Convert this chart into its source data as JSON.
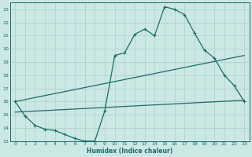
{
  "xlabel": "Humidex (Indice chaleur)",
  "xlim": [
    -0.5,
    23.5
  ],
  "ylim": [
    13,
    23.5
  ],
  "yticks": [
    13,
    14,
    15,
    16,
    17,
    18,
    19,
    20,
    21,
    22,
    23
  ],
  "xticks": [
    0,
    1,
    2,
    3,
    4,
    5,
    6,
    7,
    8,
    9,
    10,
    11,
    12,
    13,
    14,
    15,
    16,
    17,
    18,
    19,
    20,
    21,
    22,
    23
  ],
  "background_color": "#cce8e4",
  "line_color": "#1a6b6b",
  "grid_color": "#aacfcc",
  "series1_x": [
    0,
    1,
    2,
    3,
    4,
    5,
    6,
    7,
    8,
    9,
    10,
    11,
    12,
    13,
    14,
    15,
    16,
    17,
    18,
    19,
    20,
    21,
    22,
    23
  ],
  "series1_y": [
    16.0,
    14.9,
    14.2,
    13.9,
    13.8,
    13.5,
    13.2,
    13.0,
    13.0,
    15.3,
    19.5,
    19.7,
    21.1,
    21.5,
    21.0,
    23.2,
    23.0,
    22.6,
    21.2,
    19.9,
    19.3,
    18.0,
    17.2,
    16.0
  ],
  "series2_x": [
    0,
    23
  ],
  "series2_y": [
    16.0,
    19.5
  ],
  "series3_x": [
    0,
    23
  ],
  "series3_y": [
    15.2,
    16.1
  ]
}
